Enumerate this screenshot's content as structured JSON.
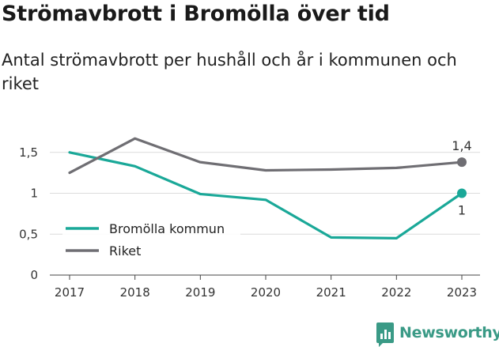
{
  "title": "Strömavbrott i Bromölla över tid",
  "subtitle": "Antal strömavbrott per hushåll och år i kommunen och riket",
  "brand": {
    "name": "Newsworthy",
    "icon": "bar-chart-speech-bubble-icon"
  },
  "chart_data": {
    "type": "line",
    "categories": [
      "2017",
      "2018",
      "2019",
      "2020",
      "2021",
      "2022",
      "2023"
    ],
    "ylim": [
      0,
      1.6
    ],
    "y_ticks": [
      0,
      0.5,
      1,
      1.5
    ],
    "y_tick_labels": [
      "0",
      "0,5",
      "1",
      "1,5"
    ],
    "grid": "horizontal",
    "legend_position": "bottom-left",
    "series": [
      {
        "name": "Bromölla kommun",
        "color": "#1aa898",
        "values": [
          1.5,
          1.33,
          0.99,
          0.92,
          0.46,
          0.45,
          1.0
        ],
        "end_label": "1",
        "end_label_position": "below"
      },
      {
        "name": "Riket",
        "color": "#6f6e73",
        "values": [
          1.25,
          1.67,
          1.38,
          1.28,
          1.29,
          1.31,
          1.38
        ],
        "end_label": "1,4",
        "end_label_position": "above"
      }
    ]
  }
}
